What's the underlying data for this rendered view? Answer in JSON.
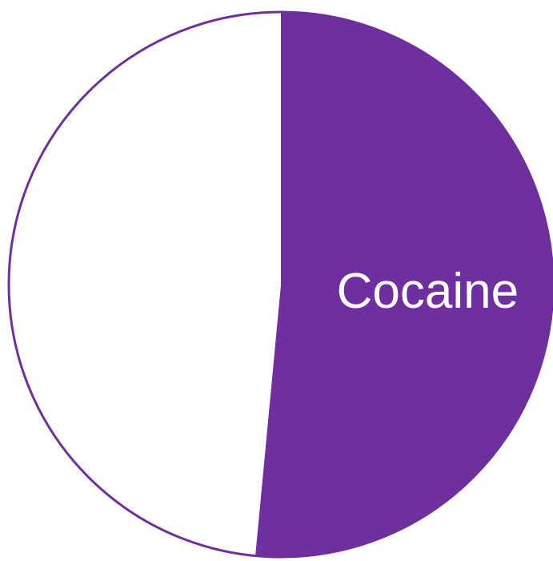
{
  "chart_data": {
    "type": "pie",
    "slices": [
      {
        "label": "Cocaine",
        "value": 51.5,
        "color": "#6f2f9f"
      },
      {
        "label": "",
        "value": 48.5,
        "color": "#ffffff"
      }
    ],
    "outline_color": "#6f2f9f",
    "start_angle_deg": 0,
    "direction": "clockwise",
    "legend": "none"
  }
}
